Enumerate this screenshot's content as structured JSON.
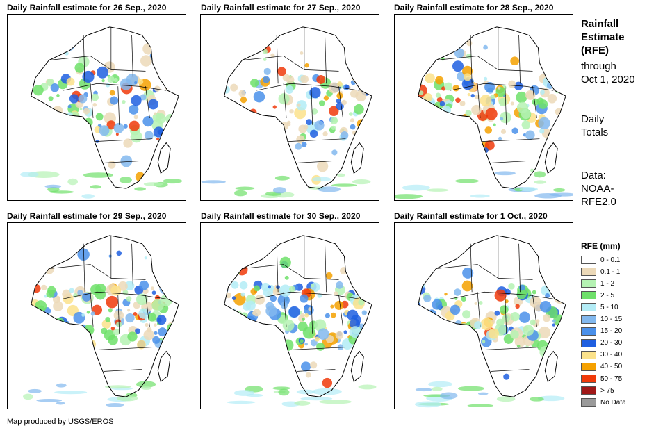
{
  "panels": [
    {
      "title": "Daily Rainfall estimate for 26 Sep., 2020",
      "rain_intensity": 0.45
    },
    {
      "title": "Daily Rainfall estimate for 27 Sep., 2020",
      "rain_intensity": 0.4
    },
    {
      "title": "Daily Rainfall estimate for 28 Sep., 2020",
      "rain_intensity": 0.65
    },
    {
      "title": "Daily Rainfall estimate for 29 Sep., 2020",
      "rain_intensity": 0.55
    },
    {
      "title": "Daily Rainfall estimate for 30 Sep., 2020",
      "rain_intensity": 0.75
    },
    {
      "title": "Daily Rainfall estimate for 1 Oct., 2020",
      "rain_intensity": 0.6
    }
  ],
  "side": {
    "heading_lines": [
      "Rainfall",
      "Estimate",
      "(RFE)"
    ],
    "period_lines": [
      "through",
      "Oct 1, 2020"
    ],
    "totals_lines": [
      "Daily",
      "Totals"
    ],
    "data_lines": [
      "Data:",
      "NOAA-",
      "RFE2.0"
    ]
  },
  "legend": {
    "title": "RFE (mm)",
    "items": [
      {
        "label": "0 - 0.1",
        "color": "#ffffff"
      },
      {
        "label": "0.1 - 1",
        "color": "#ecd9b8"
      },
      {
        "label": "1 - 2",
        "color": "#b5f2b3"
      },
      {
        "label": "2 - 5",
        "color": "#6fe06a"
      },
      {
        "label": "5 - 10",
        "color": "#b3ecf6"
      },
      {
        "label": "10 - 15",
        "color": "#82b8ee"
      },
      {
        "label": "15 - 20",
        "color": "#4a90ea"
      },
      {
        "label": "20 - 30",
        "color": "#1f5fe0"
      },
      {
        "label": "30 - 40",
        "color": "#fbe28b"
      },
      {
        "label": "40 - 50",
        "color": "#f5a100"
      },
      {
        "label": "50 - 75",
        "color": "#f03a0a"
      },
      {
        "label": "> 75",
        "color": "#a01818"
      },
      {
        "label": "No Data",
        "color": "#9a9a9a"
      }
    ]
  },
  "credit": "Map produced by USGS/EROS"
}
